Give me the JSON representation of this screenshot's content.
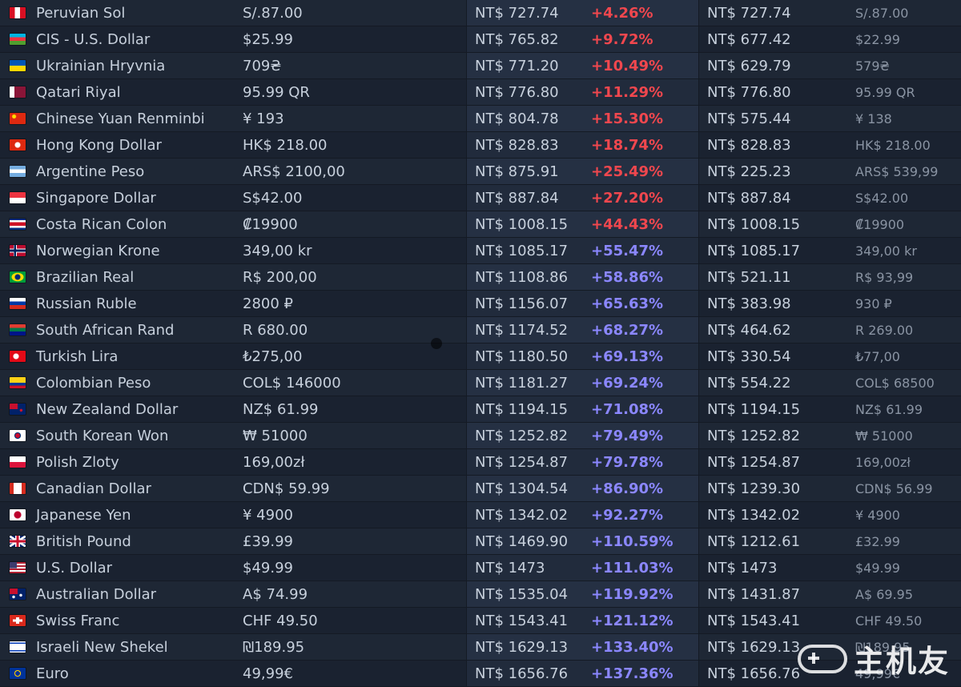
{
  "rows": [
    {
      "flag": "pe",
      "name": "Peruvian Sol",
      "local": "S/.87.00",
      "converted": "NT$ 727.74",
      "pct": "+4.26%",
      "pct_color": "red",
      "converted2": "NT$ 727.74",
      "local2": "S/.87.00"
    },
    {
      "flag": "az",
      "name": "CIS - U.S. Dollar",
      "local": "$25.99",
      "converted": "NT$ 765.82",
      "pct": "+9.72%",
      "pct_color": "red",
      "converted2": "NT$ 677.42",
      "local2": "$22.99"
    },
    {
      "flag": "ua",
      "name": "Ukrainian Hryvnia",
      "local": "709₴",
      "converted": "NT$ 771.20",
      "pct": "+10.49%",
      "pct_color": "red",
      "converted2": "NT$ 629.79",
      "local2": "579₴"
    },
    {
      "flag": "qa",
      "name": "Qatari Riyal",
      "local": "95.99 QR",
      "converted": "NT$ 776.80",
      "pct": "+11.29%",
      "pct_color": "red",
      "converted2": "NT$ 776.80",
      "local2": "95.99 QR"
    },
    {
      "flag": "cn",
      "name": "Chinese Yuan Renminbi",
      "local": "¥ 193",
      "converted": "NT$ 804.78",
      "pct": "+15.30%",
      "pct_color": "red",
      "converted2": "NT$ 575.44",
      "local2": "¥ 138"
    },
    {
      "flag": "hk",
      "name": "Hong Kong Dollar",
      "local": "HK$ 218.00",
      "converted": "NT$ 828.83",
      "pct": "+18.74%",
      "pct_color": "red",
      "converted2": "NT$ 828.83",
      "local2": "HK$ 218.00"
    },
    {
      "flag": "ar",
      "name": "Argentine Peso",
      "local": "ARS$ 2100,00",
      "converted": "NT$ 875.91",
      "pct": "+25.49%",
      "pct_color": "red",
      "converted2": "NT$ 225.23",
      "local2": "ARS$ 539,99"
    },
    {
      "flag": "sg",
      "name": "Singapore Dollar",
      "local": "S$42.00",
      "converted": "NT$ 887.84",
      "pct": "+27.20%",
      "pct_color": "red",
      "converted2": "NT$ 887.84",
      "local2": "S$42.00"
    },
    {
      "flag": "cr",
      "name": "Costa Rican Colon",
      "local": "₡19900",
      "converted": "NT$ 1008.15",
      "pct": "+44.43%",
      "pct_color": "red",
      "converted2": "NT$ 1008.15",
      "local2": "₡19900"
    },
    {
      "flag": "no",
      "name": "Norwegian Krone",
      "local": "349,00 kr",
      "converted": "NT$ 1085.17",
      "pct": "+55.47%",
      "pct_color": "purple",
      "converted2": "NT$ 1085.17",
      "local2": "349,00 kr"
    },
    {
      "flag": "br",
      "name": "Brazilian Real",
      "local": "R$ 200,00",
      "converted": "NT$ 1108.86",
      "pct": "+58.86%",
      "pct_color": "purple",
      "converted2": "NT$ 521.11",
      "local2": "R$ 93,99"
    },
    {
      "flag": "ru",
      "name": "Russian Ruble",
      "local": "2800 ₽",
      "converted": "NT$ 1156.07",
      "pct": "+65.63%",
      "pct_color": "purple",
      "converted2": "NT$ 383.98",
      "local2": "930 ₽"
    },
    {
      "flag": "za",
      "name": "South African Rand",
      "local": "R 680.00",
      "converted": "NT$ 1174.52",
      "pct": "+68.27%",
      "pct_color": "purple",
      "converted2": "NT$ 464.62",
      "local2": "R 269.00"
    },
    {
      "flag": "tr",
      "name": "Turkish Lira",
      "local": "₺275,00",
      "converted": "NT$ 1180.50",
      "pct": "+69.13%",
      "pct_color": "purple",
      "converted2": "NT$ 330.54",
      "local2": "₺77,00"
    },
    {
      "flag": "co",
      "name": "Colombian Peso",
      "local": "COL$ 146000",
      "converted": "NT$ 1181.27",
      "pct": "+69.24%",
      "pct_color": "purple",
      "converted2": "NT$ 554.22",
      "local2": "COL$ 68500"
    },
    {
      "flag": "nz",
      "name": "New Zealand Dollar",
      "local": "NZ$ 61.99",
      "converted": "NT$ 1194.15",
      "pct": "+71.08%",
      "pct_color": "purple",
      "converted2": "NT$ 1194.15",
      "local2": "NZ$ 61.99"
    },
    {
      "flag": "kr",
      "name": "South Korean Won",
      "local": "₩ 51000",
      "converted": "NT$ 1252.82",
      "pct": "+79.49%",
      "pct_color": "purple",
      "converted2": "NT$ 1252.82",
      "local2": "₩ 51000"
    },
    {
      "flag": "pl",
      "name": "Polish Zloty",
      "local": "169,00zł",
      "converted": "NT$ 1254.87",
      "pct": "+79.78%",
      "pct_color": "purple",
      "converted2": "NT$ 1254.87",
      "local2": "169,00zł"
    },
    {
      "flag": "ca",
      "name": "Canadian Dollar",
      "local": "CDN$ 59.99",
      "converted": "NT$ 1304.54",
      "pct": "+86.90%",
      "pct_color": "purple",
      "converted2": "NT$ 1239.30",
      "local2": "CDN$ 56.99"
    },
    {
      "flag": "jp",
      "name": "Japanese Yen",
      "local": "¥ 4900",
      "converted": "NT$ 1342.02",
      "pct": "+92.27%",
      "pct_color": "purple",
      "converted2": "NT$ 1342.02",
      "local2": "¥ 4900"
    },
    {
      "flag": "gb",
      "name": "British Pound",
      "local": "£39.99",
      "converted": "NT$ 1469.90",
      "pct": "+110.59%",
      "pct_color": "purple",
      "converted2": "NT$ 1212.61",
      "local2": "£32.99"
    },
    {
      "flag": "us",
      "name": "U.S. Dollar",
      "local": "$49.99",
      "converted": "NT$ 1473",
      "pct": "+111.03%",
      "pct_color": "purple",
      "converted2": "NT$ 1473",
      "local2": "$49.99"
    },
    {
      "flag": "au",
      "name": "Australian Dollar",
      "local": "A$ 74.99",
      "converted": "NT$ 1535.04",
      "pct": "+119.92%",
      "pct_color": "purple",
      "converted2": "NT$ 1431.87",
      "local2": "A$ 69.95"
    },
    {
      "flag": "ch",
      "name": "Swiss Franc",
      "local": "CHF 49.50",
      "converted": "NT$ 1543.41",
      "pct": "+121.12%",
      "pct_color": "purple",
      "converted2": "NT$ 1543.41",
      "local2": "CHF 49.50"
    },
    {
      "flag": "il",
      "name": "Israeli New Shekel",
      "local": "₪189.95",
      "converted": "NT$ 1629.13",
      "pct": "+133.40%",
      "pct_color": "purple",
      "converted2": "NT$ 1629.13",
      "local2": "₪189.95"
    },
    {
      "flag": "eu",
      "name": "Euro",
      "local": "49,99€",
      "converted": "NT$ 1656.76",
      "pct": "+137.36%",
      "pct_color": "purple",
      "converted2": "NT$ 1656.76",
      "local2": "49,99€"
    }
  ],
  "colors": {
    "red": "#f0474e",
    "purple": "#8b87ff"
  },
  "watermark": {
    "icon": "gamepad-icon",
    "text": "主机友"
  }
}
